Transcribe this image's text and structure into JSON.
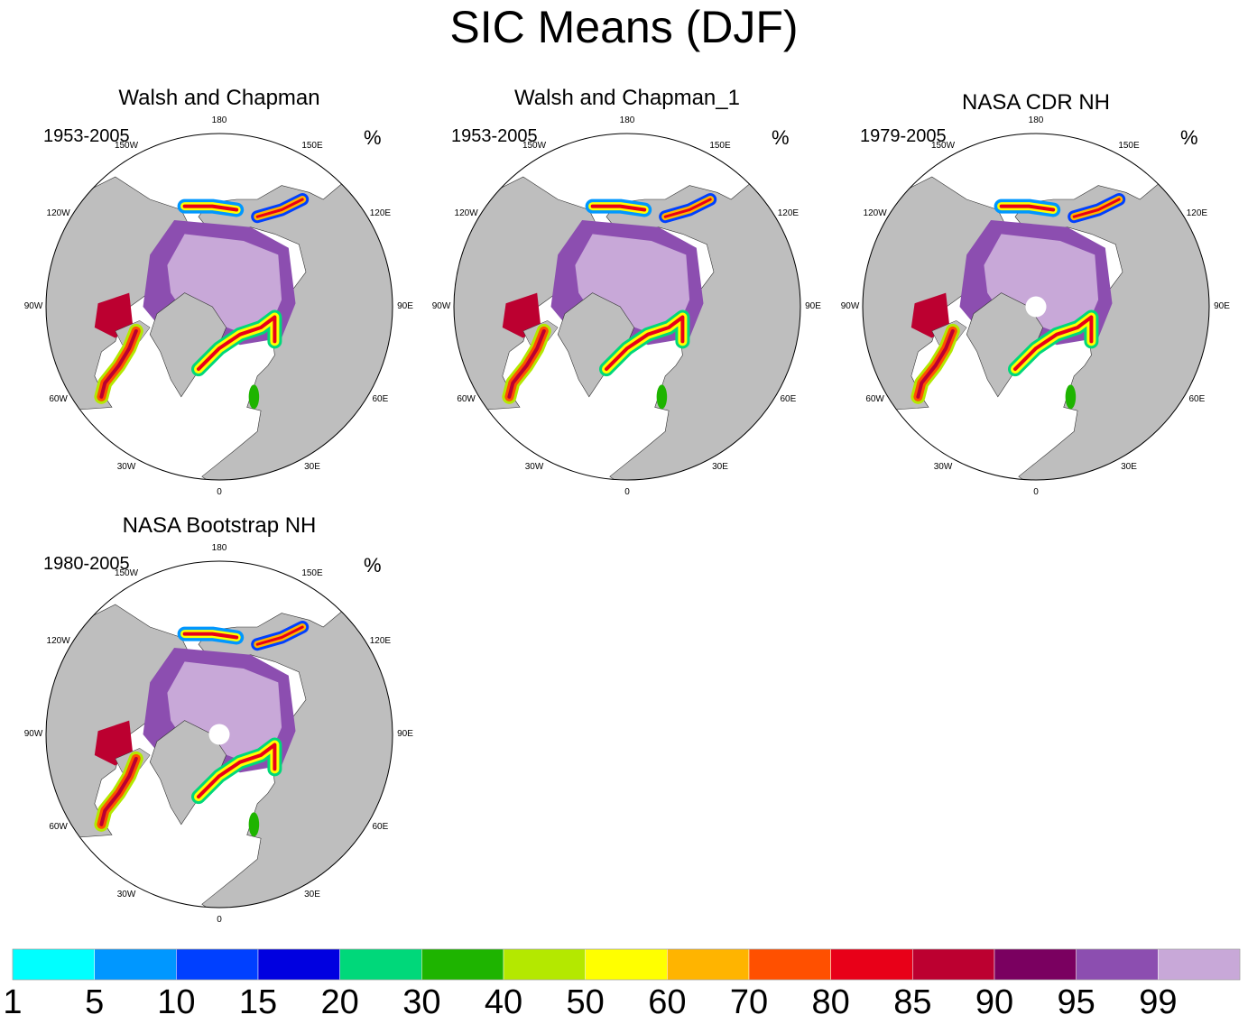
{
  "title": "SIC Means (DJF)",
  "units": "%",
  "chart_data": {
    "type": "heatmap",
    "projection": "north polar stereographic",
    "title": "SIC Means (DJF)",
    "variable": "SIC",
    "season": "DJF",
    "units": "%",
    "longitude_labels": [
      "180",
      "150E",
      "120E",
      "90E",
      "60E",
      "30E",
      "0",
      "30W",
      "60W",
      "90W",
      "120W",
      "150W"
    ],
    "panels": [
      {
        "title": "Walsh and Chapman",
        "period": "1953-2005",
        "pole_hole": false
      },
      {
        "title": "Walsh and Chapman_1",
        "period": "1953-2005",
        "pole_hole": false
      },
      {
        "title": "NASA CDR NH",
        "period": "1979-2005",
        "pole_hole": true
      },
      {
        "title": "NASA Bootstrap NH",
        "period": "1980-2005",
        "pole_hole": true
      }
    ],
    "colorbar": {
      "labels": [
        "1",
        "5",
        "10",
        "15",
        "20",
        "30",
        "40",
        "50",
        "60",
        "70",
        "80",
        "85",
        "90",
        "95",
        "99"
      ],
      "colors": [
        "#00ffff",
        "#0097ff",
        "#0040ff",
        "#0000e0",
        "#00d87a",
        "#1eb400",
        "#b4e800",
        "#ffff00",
        "#ffb400",
        "#ff5000",
        "#e80018",
        "#bc0030",
        "#7a0060",
        "#8c4eb0",
        "#c8a8d8"
      ]
    }
  },
  "style": {
    "land": "#bebebe",
    "ocean": "#ffffff"
  }
}
